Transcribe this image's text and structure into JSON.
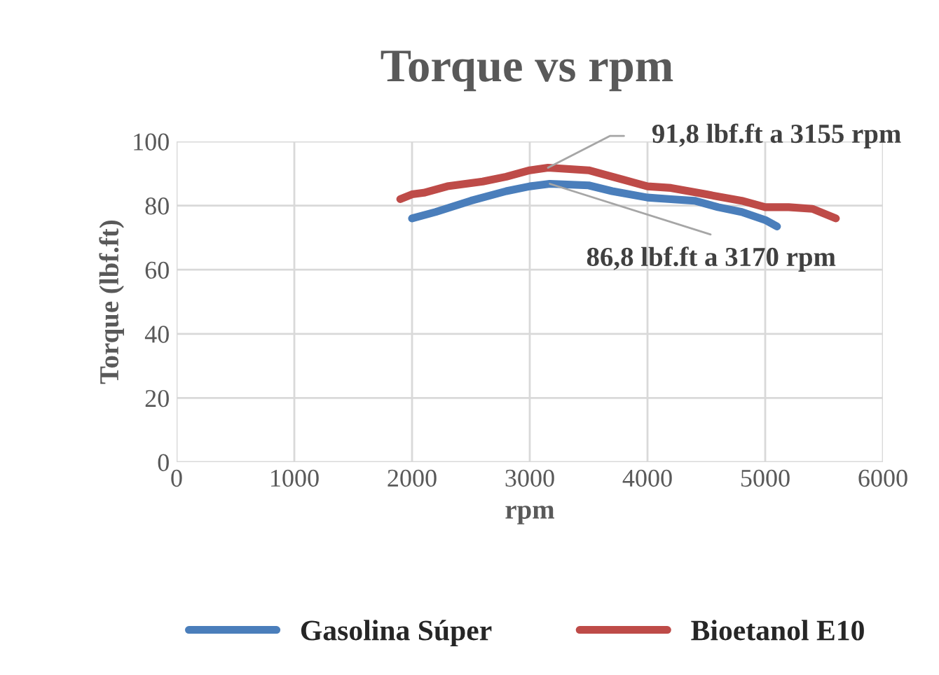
{
  "chart_data": {
    "type": "line",
    "title": "Torque vs rpm",
    "xlabel": "rpm",
    "ylabel": "Torque (lbf.ft)",
    "xlim": [
      0,
      6000
    ],
    "xticks": [
      0,
      1000,
      2000,
      3000,
      4000,
      5000,
      6000
    ],
    "ylim": [
      0,
      100
    ],
    "yticks": [
      0,
      20,
      40,
      60,
      80,
      100
    ],
    "grid": true,
    "legend": "bottom",
    "series": [
      {
        "name": "Gasolina Súper",
        "color": "#4a7ebb",
        "x": [
          2000,
          2200,
          2500,
          2800,
          3000,
          3170,
          3500,
          3700,
          4000,
          4200,
          4400,
          4600,
          4800,
          5000,
          5100
        ],
        "values": [
          76,
          78,
          81.5,
          84.5,
          86,
          86.8,
          86.3,
          84.5,
          82.5,
          82,
          81.5,
          79.5,
          78,
          75.5,
          73.5
        ]
      },
      {
        "name": "Bioetanol E10",
        "color": "#be4b48",
        "x": [
          1900,
          2000,
          2100,
          2300,
          2600,
          2800,
          3000,
          3155,
          3500,
          3800,
          4000,
          4200,
          4500,
          4800,
          5000,
          5200,
          5400,
          5600
        ],
        "values": [
          82,
          83.5,
          84,
          86,
          87.5,
          89,
          91,
          91.8,
          91,
          88,
          86,
          85.5,
          83.5,
          81.5,
          79.5,
          79.5,
          79,
          76
        ]
      }
    ],
    "annotations": [
      {
        "text": "91,8 lbf.ft a 3155 rpm",
        "x": 3155,
        "y": 91.8
      },
      {
        "text": "86,8 lbf.ft a 3170 rpm",
        "x": 3170,
        "y": 86.8
      }
    ]
  }
}
